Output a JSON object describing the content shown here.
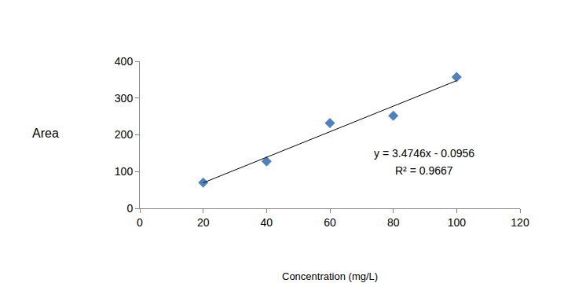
{
  "chart_data": {
    "type": "scatter",
    "xlabel": "Concentration (mg/L)",
    "ylabel": "Area",
    "series": [
      {
        "type": "scatter",
        "marker": "diamond",
        "color": "#4f81bd",
        "x": [
          20,
          40,
          60,
          80,
          100
        ],
        "values": [
          70,
          128,
          232,
          252,
          357
        ]
      },
      {
        "type": "line",
        "line_style": "solid",
        "color": "#000000",
        "x": [
          20,
          100
        ],
        "values": [
          69.4,
          347.4
        ]
      }
    ],
    "annotations": [
      "y = 3.4746x - 0.0956",
      "R² = 0.9667"
    ],
    "xlim": [
      0,
      120
    ],
    "xticks": [
      0,
      20,
      40,
      60,
      80,
      100,
      120
    ],
    "ylim": [
      0,
      400
    ],
    "yticks": [
      0,
      100,
      200,
      300,
      400
    ],
    "grid": false
  }
}
